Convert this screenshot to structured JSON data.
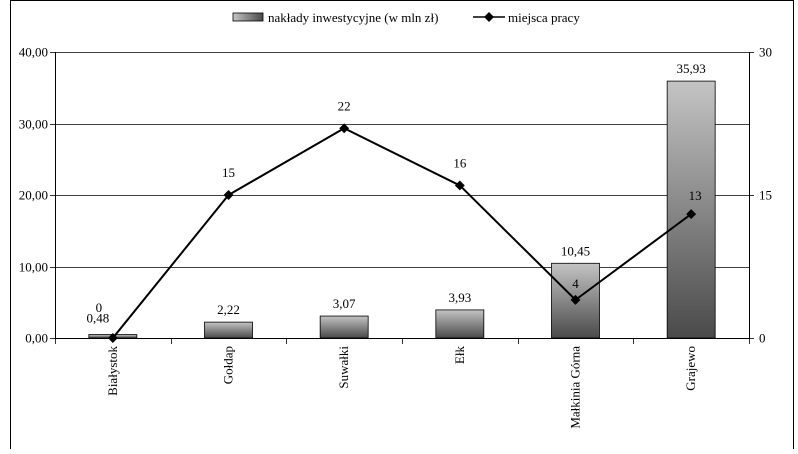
{
  "chart_data": {
    "type": "bar",
    "title": "",
    "categories": [
      "Białystok",
      "Gołdap",
      "Suwałki",
      "Ełk",
      "Małkinia Górna",
      "Grajewo"
    ],
    "series": [
      {
        "name": "nakłady inwestycyjne (w mln zł)",
        "type": "bar",
        "axis": "left",
        "values": [
          0.48,
          2.22,
          3.07,
          3.93,
          10.45,
          35.93
        ],
        "labels": [
          "0,48",
          "2,22",
          "3,07",
          "3,93",
          "10,45",
          "35,93"
        ]
      },
      {
        "name": "miejsca pracy",
        "type": "line",
        "axis": "right",
        "values": [
          0,
          15,
          22,
          16,
          4,
          13
        ],
        "labels": [
          "0",
          "15",
          "22",
          "16",
          "4",
          "13"
        ]
      }
    ],
    "left_axis": {
      "ylim": [
        0,
        40
      ],
      "ticks": [
        "0,00",
        "10,00",
        "20,00",
        "30,00",
        "40,00"
      ]
    },
    "right_axis": {
      "ylim": [
        0,
        30
      ],
      "ticks": [
        "0",
        "15",
        "30"
      ]
    },
    "grid": "horizontal",
    "legend_position": "top",
    "colors": {
      "bar_top": "#c4c4c4",
      "bar_bottom": "#4a4a4a",
      "line": "#000000"
    }
  }
}
